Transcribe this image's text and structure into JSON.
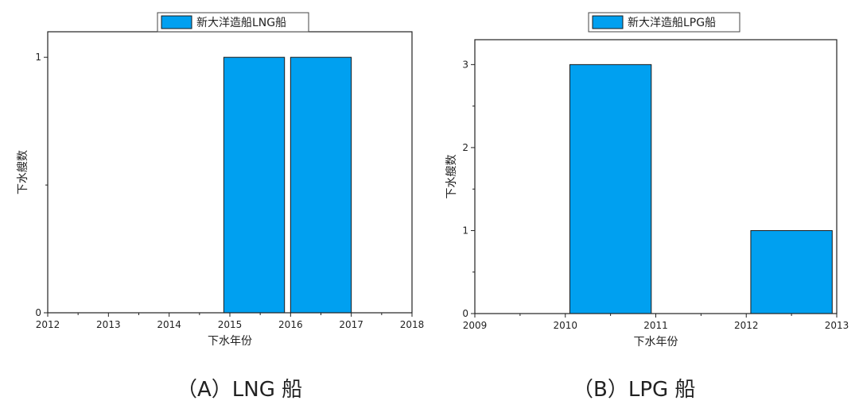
{
  "chart_data": [
    {
      "type": "bar",
      "legend": "新大洋造船LNG船",
      "xlabel": "下水年份",
      "ylabel": "下水艘数",
      "x_ticks": [
        2012,
        2013,
        2014,
        2015,
        2016,
        2017,
        2018
      ],
      "y_ticks": [
        0,
        1
      ],
      "xlim": [
        2012,
        2018
      ],
      "ylim": [
        0,
        1.1
      ],
      "bars": [
        {
          "start": 2014.9,
          "end": 2015.9,
          "value": 1
        },
        {
          "start": 2016.0,
          "end": 2017.0,
          "value": 1
        }
      ],
      "color": "#00a0f0",
      "legend_position": "top-center",
      "caption": "（A）LNG 船"
    },
    {
      "type": "bar",
      "legend": "新大洋造船LPG船",
      "xlabel": "下水年份",
      "ylabel": "下水艘数",
      "x_ticks": [
        2009,
        2010,
        2011,
        2012,
        2013
      ],
      "y_ticks": [
        0,
        1,
        2,
        3
      ],
      "xlim": [
        2009,
        2013
      ],
      "ylim": [
        0,
        3.3
      ],
      "bars": [
        {
          "start": 2010.05,
          "end": 2010.95,
          "value": 3
        },
        {
          "start": 2012.05,
          "end": 2012.95,
          "value": 1
        }
      ],
      "color": "#00a0f0",
      "legend_position": "top-center",
      "caption": "（B）LPG 船"
    }
  ]
}
